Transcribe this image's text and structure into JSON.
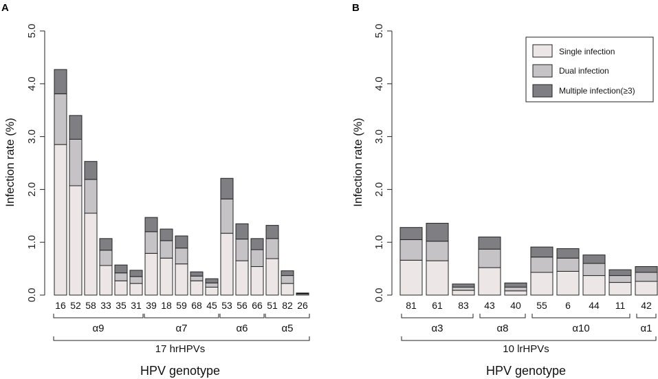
{
  "colors": {
    "single": "#ece6e7",
    "dual": "#c5c3c5",
    "multiple": "#7f7f83",
    "stroke": "#222222"
  },
  "chart_data": [
    {
      "type": "bar",
      "stacked": true,
      "panel": "A",
      "ylabel": "Infection rate (%)",
      "xlabel": "HPV genotype",
      "ylim": [
        0,
        5
      ],
      "yticks": [
        "0.0",
        "1.0",
        "2.0",
        "3.0",
        "4.0",
        "5.0"
      ],
      "categories": [
        "16",
        "52",
        "58",
        "33",
        "35",
        "31",
        "39",
        "18",
        "59",
        "68",
        "45",
        "53",
        "56",
        "66",
        "51",
        "82",
        "26"
      ],
      "series": [
        {
          "name": "Single infection",
          "values": [
            2.85,
            2.07,
            1.55,
            0.56,
            0.27,
            0.22,
            0.79,
            0.7,
            0.59,
            0.27,
            0.15,
            1.17,
            0.65,
            0.54,
            0.69,
            0.22,
            0.02
          ]
        },
        {
          "name": "Dual infection",
          "values": [
            0.96,
            0.88,
            0.64,
            0.29,
            0.15,
            0.13,
            0.41,
            0.33,
            0.3,
            0.09,
            0.08,
            0.65,
            0.41,
            0.32,
            0.38,
            0.15,
            0.01
          ]
        },
        {
          "name": "Multiple infection(≥3)",
          "values": [
            0.46,
            0.45,
            0.34,
            0.22,
            0.15,
            0.12,
            0.27,
            0.22,
            0.23,
            0.08,
            0.08,
            0.39,
            0.29,
            0.21,
            0.25,
            0.09,
            0.01
          ]
        }
      ],
      "groups": [
        {
          "label": "α9",
          "start": 0,
          "end": 5
        },
        {
          "label": "α7",
          "start": 6,
          "end": 10
        },
        {
          "label": "α6",
          "start": 11,
          "end": 13
        },
        {
          "label": "α5",
          "start": 14,
          "end": 16
        }
      ],
      "supergroup": "17 hrHPVs"
    },
    {
      "type": "bar",
      "stacked": true,
      "panel": "B",
      "ylabel": "Infection rate (%)",
      "xlabel": "HPV genotype",
      "ylim": [
        0,
        5
      ],
      "yticks": [
        "0.0",
        "1.0",
        "2.0",
        "3.0",
        "4.0",
        "5.0"
      ],
      "categories": [
        "81",
        "61",
        "83",
        "43",
        "40",
        "55",
        "6",
        "44",
        "11",
        "42"
      ],
      "series": [
        {
          "name": "Single infection",
          "values": [
            0.66,
            0.65,
            0.09,
            0.52,
            0.08,
            0.43,
            0.45,
            0.37,
            0.24,
            0.26
          ]
        },
        {
          "name": "Dual infection",
          "values": [
            0.39,
            0.37,
            0.06,
            0.35,
            0.07,
            0.29,
            0.25,
            0.23,
            0.13,
            0.17
          ]
        },
        {
          "name": "Multiple infection(≥3)",
          "values": [
            0.23,
            0.34,
            0.06,
            0.23,
            0.08,
            0.19,
            0.18,
            0.16,
            0.11,
            0.11
          ]
        }
      ],
      "groups": [
        {
          "label": "α3",
          "start": 0,
          "end": 2
        },
        {
          "label": "α8",
          "start": 3,
          "end": 4
        },
        {
          "label": "α10",
          "start": 5,
          "end": 8
        },
        {
          "label": "α1",
          "start": 9,
          "end": 9
        }
      ],
      "supergroup": "10 lrHPVs",
      "legend": {
        "position": "top-right",
        "entries": [
          "Single infection",
          "Dual infection",
          "Multiple infection(≥3)"
        ]
      }
    }
  ]
}
